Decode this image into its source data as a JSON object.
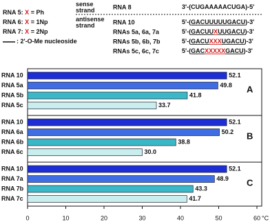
{
  "header": {
    "legend": [
      {
        "segments": [
          "RNA 5: ",
          "X",
          " = Ph"
        ]
      },
      {
        "segments": [
          "RNA 6: ",
          "X",
          " = 1Np"
        ]
      },
      {
        "segments": [
          "RNA 7: ",
          "X",
          " = 2Np"
        ]
      },
      {
        "segments": [
          " : 2'-O-Me nucleoside"
        ]
      }
    ],
    "rows": [
      {
        "strand": [
          "sense",
          "strand"
        ],
        "name": "RNA 8",
        "segments": [
          "3'-(",
          "CUGAAAAACUGA",
          ")-5'"
        ],
        "underline": false
      },
      {
        "strand": [
          "antisense",
          "strand"
        ],
        "name": "RNA 10",
        "segments": [
          "5'-(",
          "GACUUUUUGACU",
          ")-3'"
        ],
        "underline": true
      },
      {
        "name": "RNAs 5a, 6a, 7a",
        "segments": [
          "5'-(",
          "GACUU",
          "X",
          "UUGACU",
          ")-3'"
        ],
        "underline": true
      },
      {
        "name": "RNAs 5b, 6b, 7b",
        "segments": [
          "5'-(",
          "GACU",
          "XXX",
          "UGACU",
          ")-3'"
        ],
        "underline": true
      },
      {
        "name": "RNAs 5c, 6c, 7c",
        "segments": [
          "5'-(",
          "GAC",
          "XXXXX",
          "GACU",
          ")-3'"
        ],
        "underline": true
      }
    ]
  },
  "chart_data": {
    "type": "bar",
    "orientation": "horizontal",
    "xlim": [
      0,
      60
    ],
    "xticks": [
      0,
      10,
      20,
      30,
      40,
      50,
      60
    ],
    "xlabel": "°C",
    "colors": [
      "#1d2fd4",
      "#3f6de3",
      "#3bb8c8",
      "#c8eeee"
    ],
    "panels": [
      {
        "label": "A",
        "categories": [
          "RNA 10",
          "RNA 5a",
          "RNA 5b",
          "RNA 5c"
        ],
        "values": [
          52.1,
          49.8,
          41.8,
          33.7
        ]
      },
      {
        "label": "B",
        "categories": [
          "RNA 10",
          "RNA 6a",
          "RNA 6b",
          "RNA 6c"
        ],
        "values": [
          52.1,
          50.2,
          38.8,
          30.0
        ],
        "value_labels": [
          "52.1",
          "50.2",
          "38.8",
          "30.0"
        ]
      },
      {
        "label": "C",
        "categories": [
          "RNA 10",
          "RNA 7a",
          "RNA 7b",
          "RNA 7c"
        ],
        "values": [
          52.1,
          48.9,
          43.3,
          41.7
        ]
      }
    ]
  }
}
